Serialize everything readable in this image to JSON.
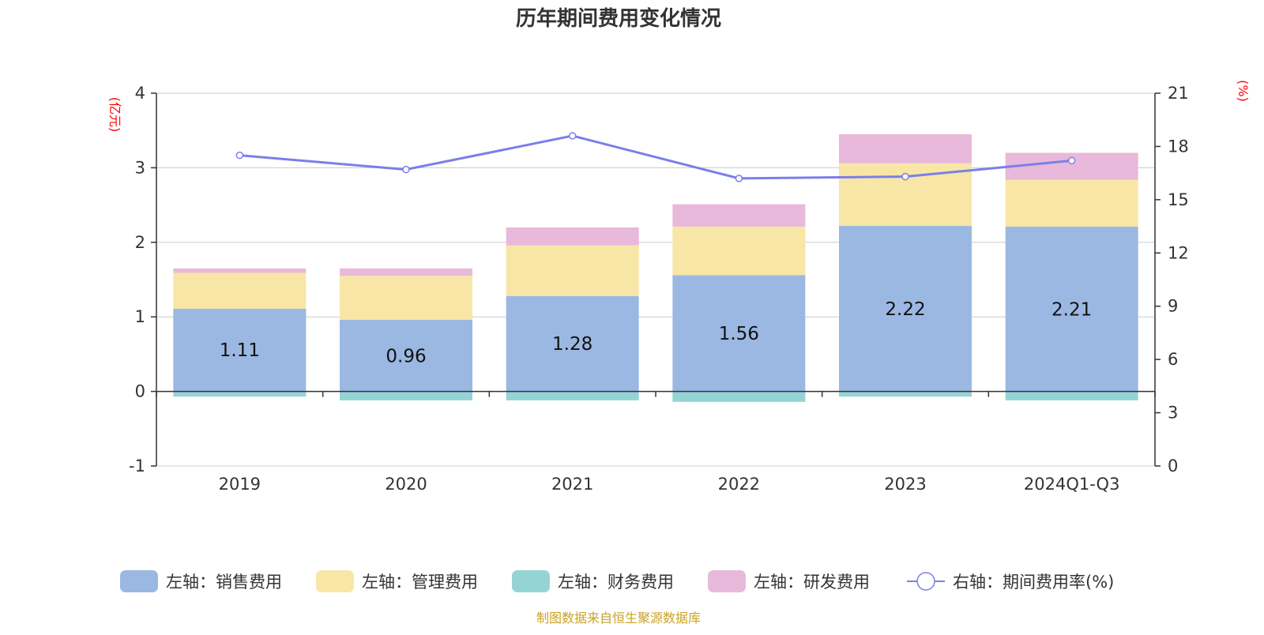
{
  "chart_data": {
    "type": "bar",
    "stacked": true,
    "title": "历年期间费用变化情况",
    "categories": [
      "2019",
      "2020",
      "2021",
      "2022",
      "2023",
      "2024Q1-Q3"
    ],
    "left_axis": {
      "unit": "(亿元)",
      "min": -1,
      "max": 4,
      "ticks": [
        "4",
        "3",
        "2",
        "1",
        "0",
        "-1"
      ]
    },
    "right_axis": {
      "unit": "(%)",
      "min": 0,
      "max": 21,
      "ticks": [
        "21",
        "18",
        "15",
        "12",
        "9",
        "6",
        "3",
        "0"
      ]
    },
    "series": [
      {
        "name": "左轴：销售费用",
        "axis": "left",
        "color": "#9bb8e2",
        "values": [
          1.11,
          0.96,
          1.28,
          1.56,
          2.22,
          2.21
        ],
        "labels": [
          "1.11",
          "0.96",
          "1.28",
          "1.56",
          "2.22",
          "2.21"
        ]
      },
      {
        "name": "左轴：管理费用",
        "axis": "left",
        "color": "#f8e6a6",
        "values": [
          0.48,
          0.59,
          0.68,
          0.65,
          0.84,
          0.63
        ]
      },
      {
        "name": "左轴：财务费用",
        "axis": "left",
        "color": "#95d4d4",
        "values": [
          -0.07,
          -0.12,
          -0.12,
          -0.14,
          -0.07,
          -0.12
        ]
      },
      {
        "name": "左轴：研发费用",
        "axis": "left",
        "color": "#e8b9da",
        "values": [
          0.06,
          0.1,
          0.24,
          0.3,
          0.39,
          0.36
        ]
      },
      {
        "name": "右轴：期间费用率(%)",
        "axis": "right",
        "type": "line",
        "color": "#7b7fe8",
        "values": [
          17.5,
          16.7,
          18.6,
          16.2,
          16.3,
          17.2
        ]
      }
    ],
    "source": "制图数据来自恒生聚源数据库"
  }
}
